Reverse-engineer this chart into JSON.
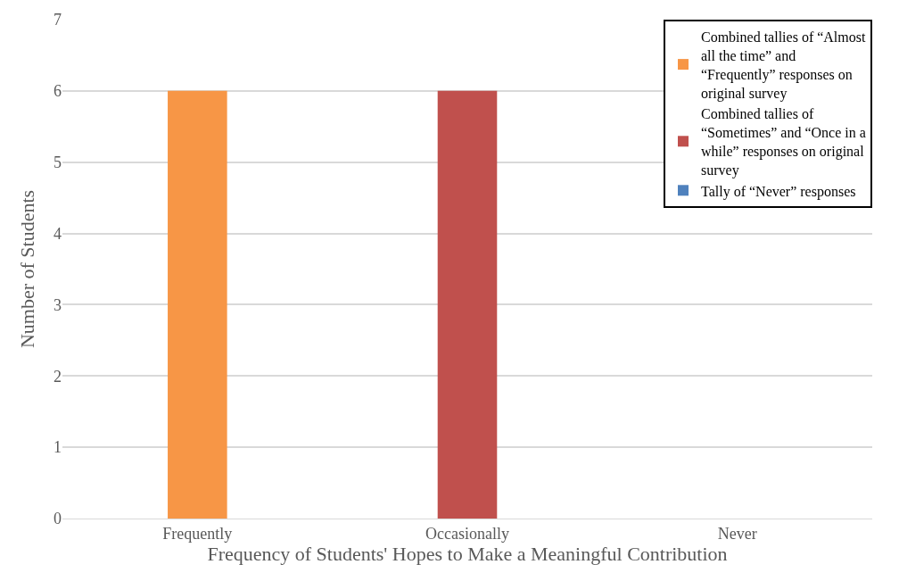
{
  "chart_data": {
    "type": "bar",
    "xlabel": "Frequency of Students' Hopes to Make a Meaningful Contribution",
    "ylabel": "Number of Students",
    "categories": [
      "Frequently",
      "Occasionally",
      "Never"
    ],
    "series": [
      {
        "name": "Combined tallies of “Almost all the time” and “Frequently” responses on original survey",
        "color": "#f79646",
        "values": [
          6,
          null,
          null
        ]
      },
      {
        "name": "Combined tallies of “Sometimes” and “Once in a while” responses on original survey",
        "color": "#c0504d",
        "values": [
          null,
          6,
          null
        ]
      },
      {
        "name": "Tally of “Never” responses",
        "color": "#4f81bd",
        "values": [
          null,
          null,
          0
        ]
      }
    ],
    "ylim": [
      0,
      7
    ],
    "yticks": [
      0,
      1,
      2,
      3,
      4,
      5,
      6,
      7
    ],
    "grid": "y",
    "legend": "top right"
  }
}
